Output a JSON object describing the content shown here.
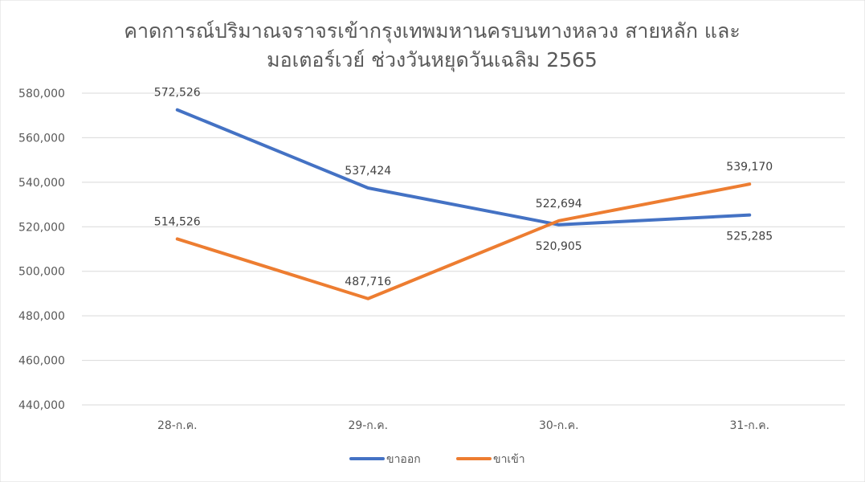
{
  "chart_data": {
    "type": "line",
    "title": [
      "คาดการณ์ปริมาณจราจรเข้ากรุงเทพมหานครบนทางหลวง สายหลัก และ",
      "มอเตอร์เวย์ ช่วงวันหยุดวันเฉลิม 2565"
    ],
    "categories": [
      "28-ก.ค.",
      "29-ก.ค.",
      "30-ก.ค.",
      "31-ก.ค."
    ],
    "series": [
      {
        "name": "ขาออก",
        "color": "#4472C4",
        "values": [
          572526,
          537424,
          520905,
          525285
        ],
        "labels": [
          "572,526",
          "537,424",
          "520,905",
          "525,285"
        ],
        "label_pos": [
          "above",
          "above",
          "below",
          "below"
        ]
      },
      {
        "name": "ขาเข้า",
        "color": "#ED7D31",
        "values": [
          514526,
          487716,
          522694,
          539170
        ],
        "labels": [
          "514,526",
          "487,716",
          "522,694",
          "539,170"
        ],
        "label_pos": [
          "above",
          "above",
          "above",
          "above"
        ]
      }
    ],
    "ylim": [
      440000,
      580000
    ],
    "yticks": [
      440000,
      460000,
      480000,
      500000,
      520000,
      540000,
      560000,
      580000
    ],
    "ytick_labels": [
      "440,000",
      "460,000",
      "480,000",
      "500,000",
      "520,000",
      "540,000",
      "560,000",
      "580,000"
    ],
    "xlabel": "",
    "ylabel": "",
    "grid": true,
    "legend": "bottom"
  }
}
